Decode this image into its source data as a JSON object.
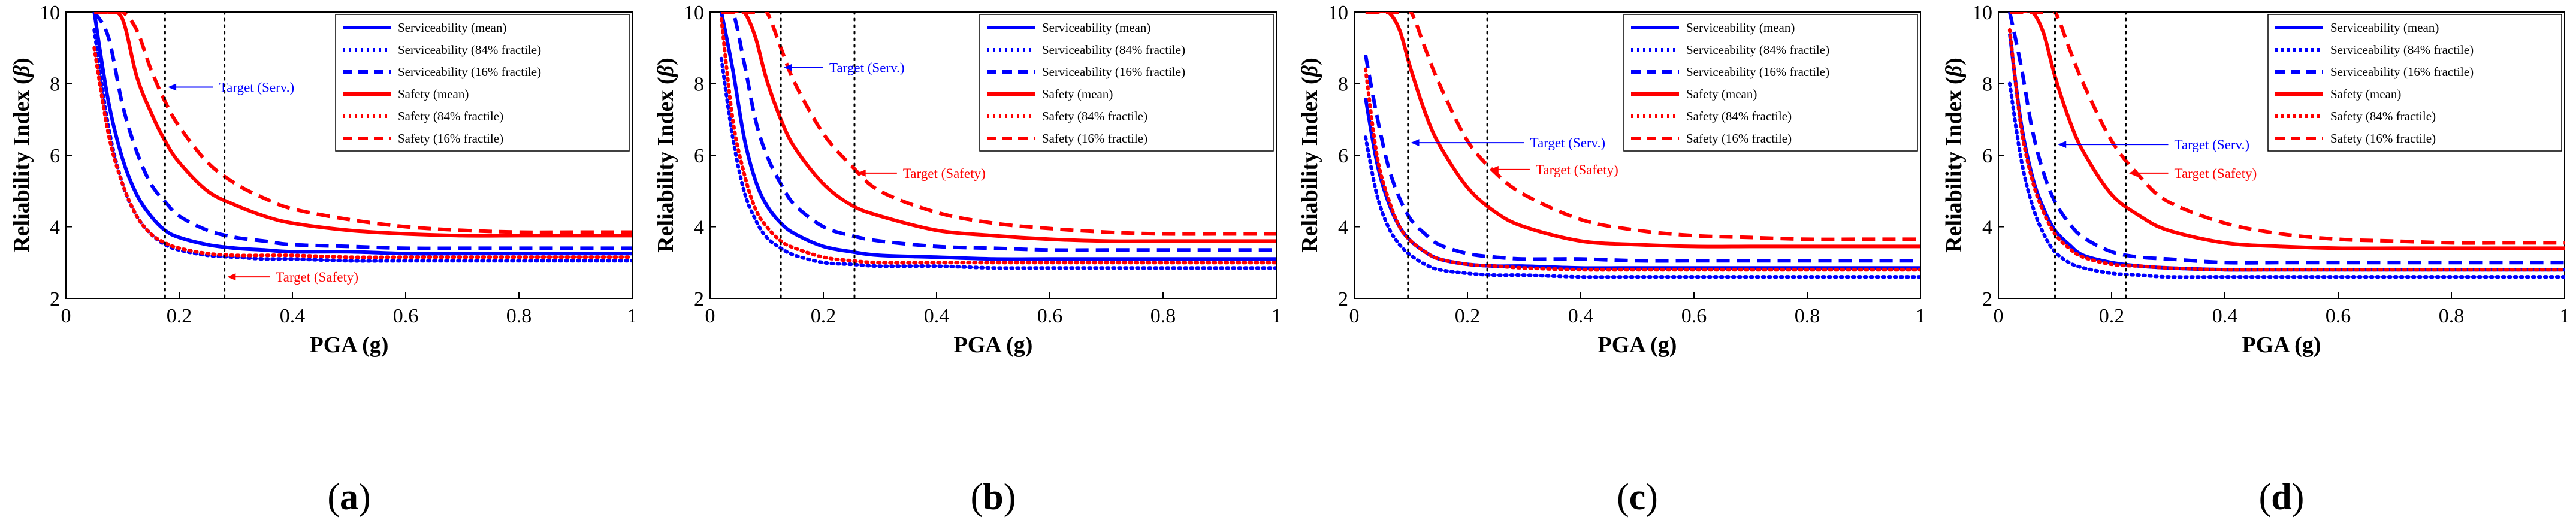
{
  "colors": {
    "serviceability": "#0000ff",
    "safety": "#ff0000",
    "target_line": "#000000"
  },
  "shared": {
    "xlabel": "PGA (g)",
    "ylabel_text": "Reliability Index (",
    "ylabel_symbol": "β",
    "ylabel_close": ")",
    "xlim": [
      0,
      1
    ],
    "ylim": [
      2,
      10
    ],
    "xticks": [
      0,
      0.2,
      0.4,
      0.6,
      0.8,
      1
    ],
    "xtick_labels": [
      "0",
      "0.2",
      "0.4",
      "0.6",
      "0.8",
      "1"
    ],
    "yticks": [
      2,
      4,
      6,
      8,
      10
    ],
    "ytick_labels": [
      "2",
      "4",
      "6",
      "8",
      "10"
    ],
    "legend_placement": "top-right",
    "grid": false,
    "legend": [
      {
        "label": "Serviceability (mean)",
        "color": "serviceability",
        "style": "solid"
      },
      {
        "label": "Serviceability (84% fractile)",
        "color": "serviceability",
        "style": "dotted"
      },
      {
        "label": "Serviceability (16% fractile)",
        "color": "serviceability",
        "style": "dashed"
      },
      {
        "label": "Safety (mean)",
        "color": "safety",
        "style": "solid"
      },
      {
        "label": "Safety (84% fractile)",
        "color": "safety",
        "style": "dotted"
      },
      {
        "label": "Safety (16% fractile)",
        "color": "safety",
        "style": "dashed"
      }
    ]
  },
  "chart_data": [
    {
      "type": "line",
      "panel_label_open": "(",
      "panel_label_letter": "a",
      "panel_label_close": ")",
      "x": [
        0.05,
        0.075,
        0.1,
        0.125,
        0.15,
        0.175,
        0.2,
        0.25,
        0.3,
        0.35,
        0.4,
        0.5,
        0.6,
        0.7,
        0.8,
        0.9,
        1.0
      ],
      "series": [
        {
          "name": "Serviceability (mean)",
          "values": [
            10.0,
            7.5,
            5.9,
            4.9,
            4.3,
            3.9,
            3.7,
            3.5,
            3.4,
            3.35,
            3.3,
            3.3,
            3.25,
            3.25,
            3.25,
            3.25,
            3.25
          ]
        },
        {
          "name": "Serviceability (84% fractile)",
          "values": [
            9.5,
            6.8,
            5.2,
            4.3,
            3.8,
            3.5,
            3.35,
            3.2,
            3.15,
            3.1,
            3.1,
            3.05,
            3.05,
            3.05,
            3.05,
            3.05,
            3.05
          ]
        },
        {
          "name": "Serviceability (16% fractile)",
          "values": [
            10.0,
            9.3,
            7.4,
            6.1,
            5.2,
            4.7,
            4.3,
            3.9,
            3.7,
            3.6,
            3.5,
            3.45,
            3.4,
            3.4,
            3.4,
            3.4,
            3.4
          ]
        },
        {
          "name": "Safety (mean)",
          "values": [
            10.0,
            10.0,
            9.8,
            8.2,
            7.2,
            6.4,
            5.8,
            5.0,
            4.6,
            4.3,
            4.1,
            3.9,
            3.8,
            3.75,
            3.75,
            3.75,
            3.75
          ]
        },
        {
          "name": "Safety (84% fractile)",
          "values": [
            9.0,
            6.6,
            5.2,
            4.3,
            3.8,
            3.55,
            3.4,
            3.25,
            3.2,
            3.2,
            3.2,
            3.15,
            3.15,
            3.15,
            3.15,
            3.15,
            3.15
          ]
        },
        {
          "name": "Safety (16% fractile)",
          "values": [
            10.0,
            10.0,
            10.0,
            9.5,
            8.4,
            7.5,
            6.8,
            5.8,
            5.2,
            4.8,
            4.5,
            4.2,
            4.0,
            3.9,
            3.85,
            3.85,
            3.85
          ]
        }
      ],
      "target_lines": [
        0.175,
        0.28
      ],
      "annotations": [
        {
          "text": "Target (Serv.)",
          "color": "serviceability",
          "from": [
            0.26,
            7.9
          ],
          "to": [
            0.18,
            7.9
          ]
        },
        {
          "text": "Target (Safety)",
          "color": "safety",
          "from": [
            0.36,
            2.6
          ],
          "to": [
            0.285,
            2.6
          ]
        }
      ]
    },
    {
      "type": "line",
      "panel_label_open": "(",
      "panel_label_letter": "b",
      "panel_label_close": ")",
      "x": [
        0.02,
        0.04,
        0.06,
        0.08,
        0.1,
        0.125,
        0.15,
        0.2,
        0.25,
        0.3,
        0.4,
        0.5,
        0.6,
        0.7,
        0.8,
        0.9,
        1.0
      ],
      "series": [
        {
          "name": "Serviceability (mean)",
          "values": [
            10.0,
            8.4,
            6.5,
            5.3,
            4.6,
            4.1,
            3.8,
            3.45,
            3.3,
            3.2,
            3.15,
            3.1,
            3.1,
            3.1,
            3.1,
            3.1,
            3.1
          ]
        },
        {
          "name": "Serviceability (84% fractile)",
          "values": [
            8.7,
            6.5,
            5.0,
            4.2,
            3.7,
            3.4,
            3.2,
            3.0,
            2.95,
            2.9,
            2.9,
            2.85,
            2.85,
            2.85,
            2.85,
            2.85,
            2.85
          ]
        },
        {
          "name": "Serviceability (16% fractile)",
          "values": [
            10.0,
            10.0,
            8.6,
            7.0,
            6.0,
            5.2,
            4.6,
            4.0,
            3.75,
            3.6,
            3.45,
            3.4,
            3.35,
            3.35,
            3.35,
            3.35,
            3.35
          ]
        },
        {
          "name": "Safety (mean)",
          "values": [
            10.0,
            10.0,
            10.0,
            9.3,
            8.1,
            7.0,
            6.2,
            5.2,
            4.6,
            4.3,
            3.9,
            3.75,
            3.65,
            3.6,
            3.6,
            3.6,
            3.6
          ]
        },
        {
          "name": "Safety (84% fractile)",
          "values": [
            9.8,
            7.0,
            5.5,
            4.5,
            4.0,
            3.6,
            3.4,
            3.15,
            3.05,
            3.0,
            3.0,
            3.0,
            3.0,
            3.0,
            3.0,
            3.0,
            3.0
          ]
        },
        {
          "name": "Safety (16% fractile)",
          "values": [
            10.0,
            10.0,
            10.0,
            10.0,
            10.0,
            9.0,
            8.0,
            6.6,
            5.7,
            5.0,
            4.4,
            4.1,
            3.95,
            3.85,
            3.8,
            3.8,
            3.8
          ]
        }
      ],
      "target_lines": [
        0.125,
        0.255
      ],
      "annotations": [
        {
          "text": "Target (Serv.)",
          "color": "serviceability",
          "from": [
            0.2,
            8.45
          ],
          "to": [
            0.13,
            8.45
          ]
        },
        {
          "text": "Target (Safety)",
          "color": "safety",
          "from": [
            0.33,
            5.5
          ],
          "to": [
            0.26,
            5.5
          ]
        }
      ]
    },
    {
      "type": "line",
      "panel_label_open": "(",
      "panel_label_letter": "c",
      "panel_label_close": ")",
      "x": [
        0.02,
        0.04,
        0.06,
        0.08,
        0.1,
        0.125,
        0.15,
        0.2,
        0.25,
        0.3,
        0.4,
        0.5,
        0.6,
        0.7,
        0.8,
        0.9,
        1.0
      ],
      "series": [
        {
          "name": "Serviceability (mean)",
          "values": [
            7.6,
            5.8,
            4.7,
            4.0,
            3.6,
            3.3,
            3.1,
            2.95,
            2.9,
            2.9,
            2.85,
            2.85,
            2.85,
            2.85,
            2.85,
            2.85,
            2.85
          ]
        },
        {
          "name": "Serviceability (84% fractile)",
          "values": [
            6.5,
            4.9,
            4.0,
            3.5,
            3.2,
            2.95,
            2.8,
            2.7,
            2.65,
            2.65,
            2.6,
            2.6,
            2.6,
            2.6,
            2.6,
            2.6,
            2.6
          ]
        },
        {
          "name": "Serviceability (16% fractile)",
          "values": [
            8.8,
            7.1,
            5.7,
            4.8,
            4.2,
            3.8,
            3.5,
            3.25,
            3.15,
            3.1,
            3.1,
            3.05,
            3.05,
            3.05,
            3.05,
            3.05,
            3.05
          ]
        },
        {
          "name": "Safety (mean)",
          "values": [
            10.0,
            10.0,
            10.0,
            9.5,
            8.4,
            7.2,
            6.3,
            5.1,
            4.4,
            4.0,
            3.6,
            3.5,
            3.45,
            3.45,
            3.45,
            3.45,
            3.45
          ]
        },
        {
          "name": "Safety (84% fractile)",
          "values": [
            8.4,
            6.0,
            4.8,
            4.0,
            3.6,
            3.3,
            3.1,
            2.95,
            2.9,
            2.85,
            2.8,
            2.8,
            2.8,
            2.8,
            2.8,
            2.8,
            2.8
          ]
        },
        {
          "name": "Safety (16% fractile)",
          "values": [
            10.0,
            10.0,
            10.0,
            10.0,
            10.0,
            9.0,
            8.0,
            6.4,
            5.5,
            4.9,
            4.2,
            3.9,
            3.75,
            3.7,
            3.65,
            3.65,
            3.65
          ]
        }
      ],
      "target_lines": [
        0.095,
        0.235
      ],
      "annotations": [
        {
          "text": "Target (Serv.)",
          "color": "serviceability",
          "from": [
            0.3,
            6.35
          ],
          "to": [
            0.1,
            6.35
          ]
        },
        {
          "text": "Target (Safety)",
          "color": "safety",
          "from": [
            0.31,
            5.6
          ],
          "to": [
            0.24,
            5.6
          ]
        }
      ]
    },
    {
      "type": "line",
      "panel_label_open": "(",
      "panel_label_letter": "d",
      "panel_label_close": ")",
      "x": [
        0.02,
        0.04,
        0.06,
        0.08,
        0.1,
        0.125,
        0.15,
        0.2,
        0.25,
        0.3,
        0.4,
        0.5,
        0.6,
        0.7,
        0.8,
        0.9,
        1.0
      ],
      "series": [
        {
          "name": "Serviceability (mean)",
          "values": [
            9.4,
            6.9,
            5.4,
            4.5,
            3.9,
            3.5,
            3.2,
            3.0,
            2.9,
            2.85,
            2.8,
            2.8,
            2.8,
            2.8,
            2.8,
            2.8,
            2.8
          ]
        },
        {
          "name": "Serviceability (84% fractile)",
          "values": [
            8.0,
            5.9,
            4.6,
            3.8,
            3.3,
            3.0,
            2.85,
            2.7,
            2.65,
            2.6,
            2.6,
            2.6,
            2.6,
            2.6,
            2.6,
            2.6,
            2.6
          ]
        },
        {
          "name": "Serviceability (16% fractile)",
          "values": [
            10.0,
            8.5,
            6.7,
            5.5,
            4.7,
            4.1,
            3.7,
            3.3,
            3.15,
            3.1,
            3.0,
            3.0,
            3.0,
            3.0,
            3.0,
            3.0,
            3.0
          ]
        },
        {
          "name": "Safety (mean)",
          "values": [
            10.0,
            10.0,
            10.0,
            9.4,
            8.2,
            7.0,
            6.1,
            4.9,
            4.3,
            3.9,
            3.55,
            3.45,
            3.4,
            3.4,
            3.4,
            3.4,
            3.4
          ]
        },
        {
          "name": "Safety (84% fractile)",
          "values": [
            9.5,
            6.8,
            5.3,
            4.4,
            3.8,
            3.4,
            3.15,
            2.95,
            2.9,
            2.85,
            2.8,
            2.8,
            2.8,
            2.8,
            2.8,
            2.8,
            2.8
          ]
        },
        {
          "name": "Safety (16% fractile)",
          "values": [
            10.0,
            10.0,
            10.0,
            10.0,
            10.0,
            9.0,
            8.0,
            6.4,
            5.4,
            4.7,
            4.1,
            3.8,
            3.65,
            3.6,
            3.55,
            3.55,
            3.55
          ]
        }
      ],
      "target_lines": [
        0.1,
        0.225
      ],
      "annotations": [
        {
          "text": "Target (Serv.)",
          "color": "serviceability",
          "from": [
            0.3,
            6.3
          ],
          "to": [
            0.105,
            6.3
          ]
        },
        {
          "text": "Target (Safety)",
          "color": "safety",
          "from": [
            0.3,
            5.5
          ],
          "to": [
            0.23,
            5.5
          ]
        }
      ]
    }
  ]
}
